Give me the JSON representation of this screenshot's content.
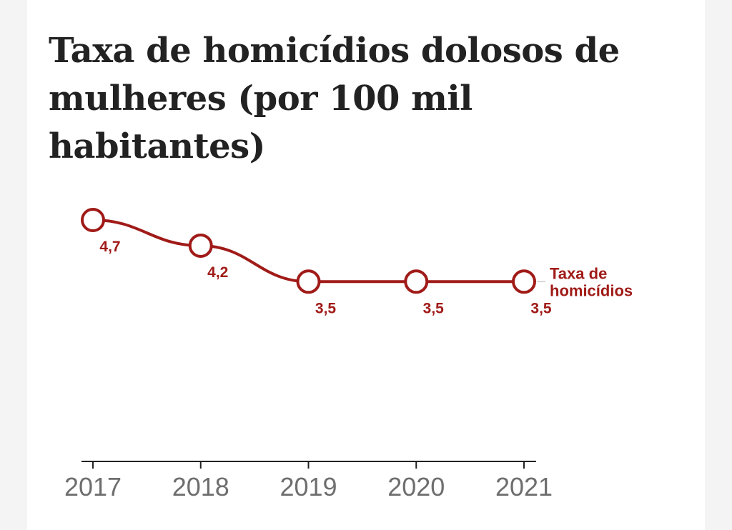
{
  "chart_data": {
    "type": "line",
    "title": "Taxa de homicídios dolosos de mulheres (por 100 mil habitantes)",
    "categories": [
      "2017",
      "2018",
      "2019",
      "2020",
      "2021"
    ],
    "series": [
      {
        "name": "Taxa de homicídios",
        "name_lines": [
          "Taxa de",
          "homicídios"
        ],
        "values": [
          4.7,
          4.2,
          3.5,
          3.5,
          3.5
        ],
        "value_labels": [
          "4,7",
          "4,2",
          "3,5",
          "3,5",
          "3,5"
        ]
      }
    ],
    "xlabel": "",
    "ylabel": "",
    "ylim": [
      0,
      4.9
    ],
    "grid": false,
    "legend": "right-inline"
  },
  "colors": {
    "series": "#a01b18",
    "title": "#222222",
    "axis": "#222222",
    "tick_label": "#6e6e6e"
  }
}
